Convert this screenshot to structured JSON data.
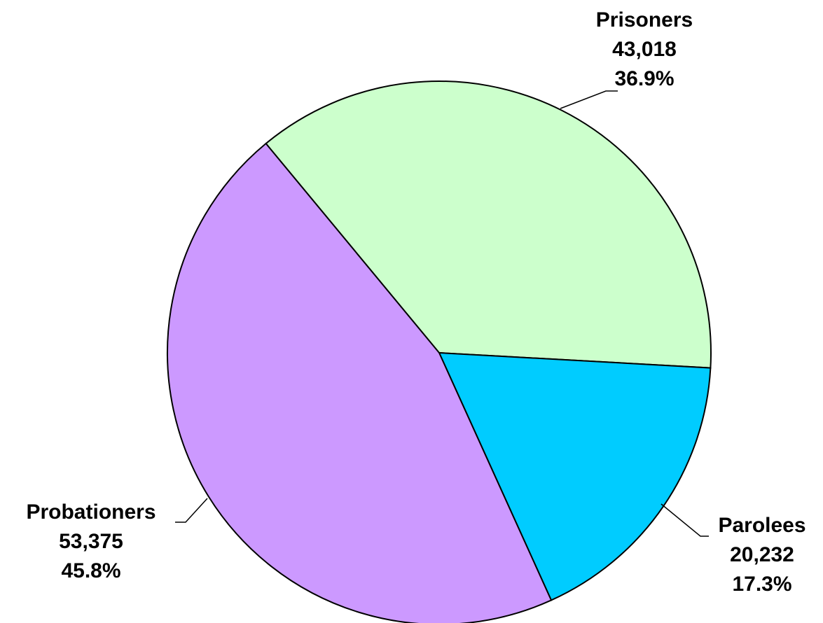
{
  "chart_data": {
    "type": "pie",
    "categories": [
      "Prisoners",
      "Parolees",
      "Probationers"
    ],
    "values": [
      43018,
      20232,
      53375
    ],
    "value_labels": [
      "43,018",
      "20,232",
      "53,375"
    ],
    "percents": [
      36.9,
      17.3,
      45.8
    ],
    "percent_labels": [
      "36.9%",
      "17.3%",
      "45.8%"
    ],
    "colors": [
      "#ccffcc",
      "#00ccff",
      "#cc99ff"
    ]
  }
}
